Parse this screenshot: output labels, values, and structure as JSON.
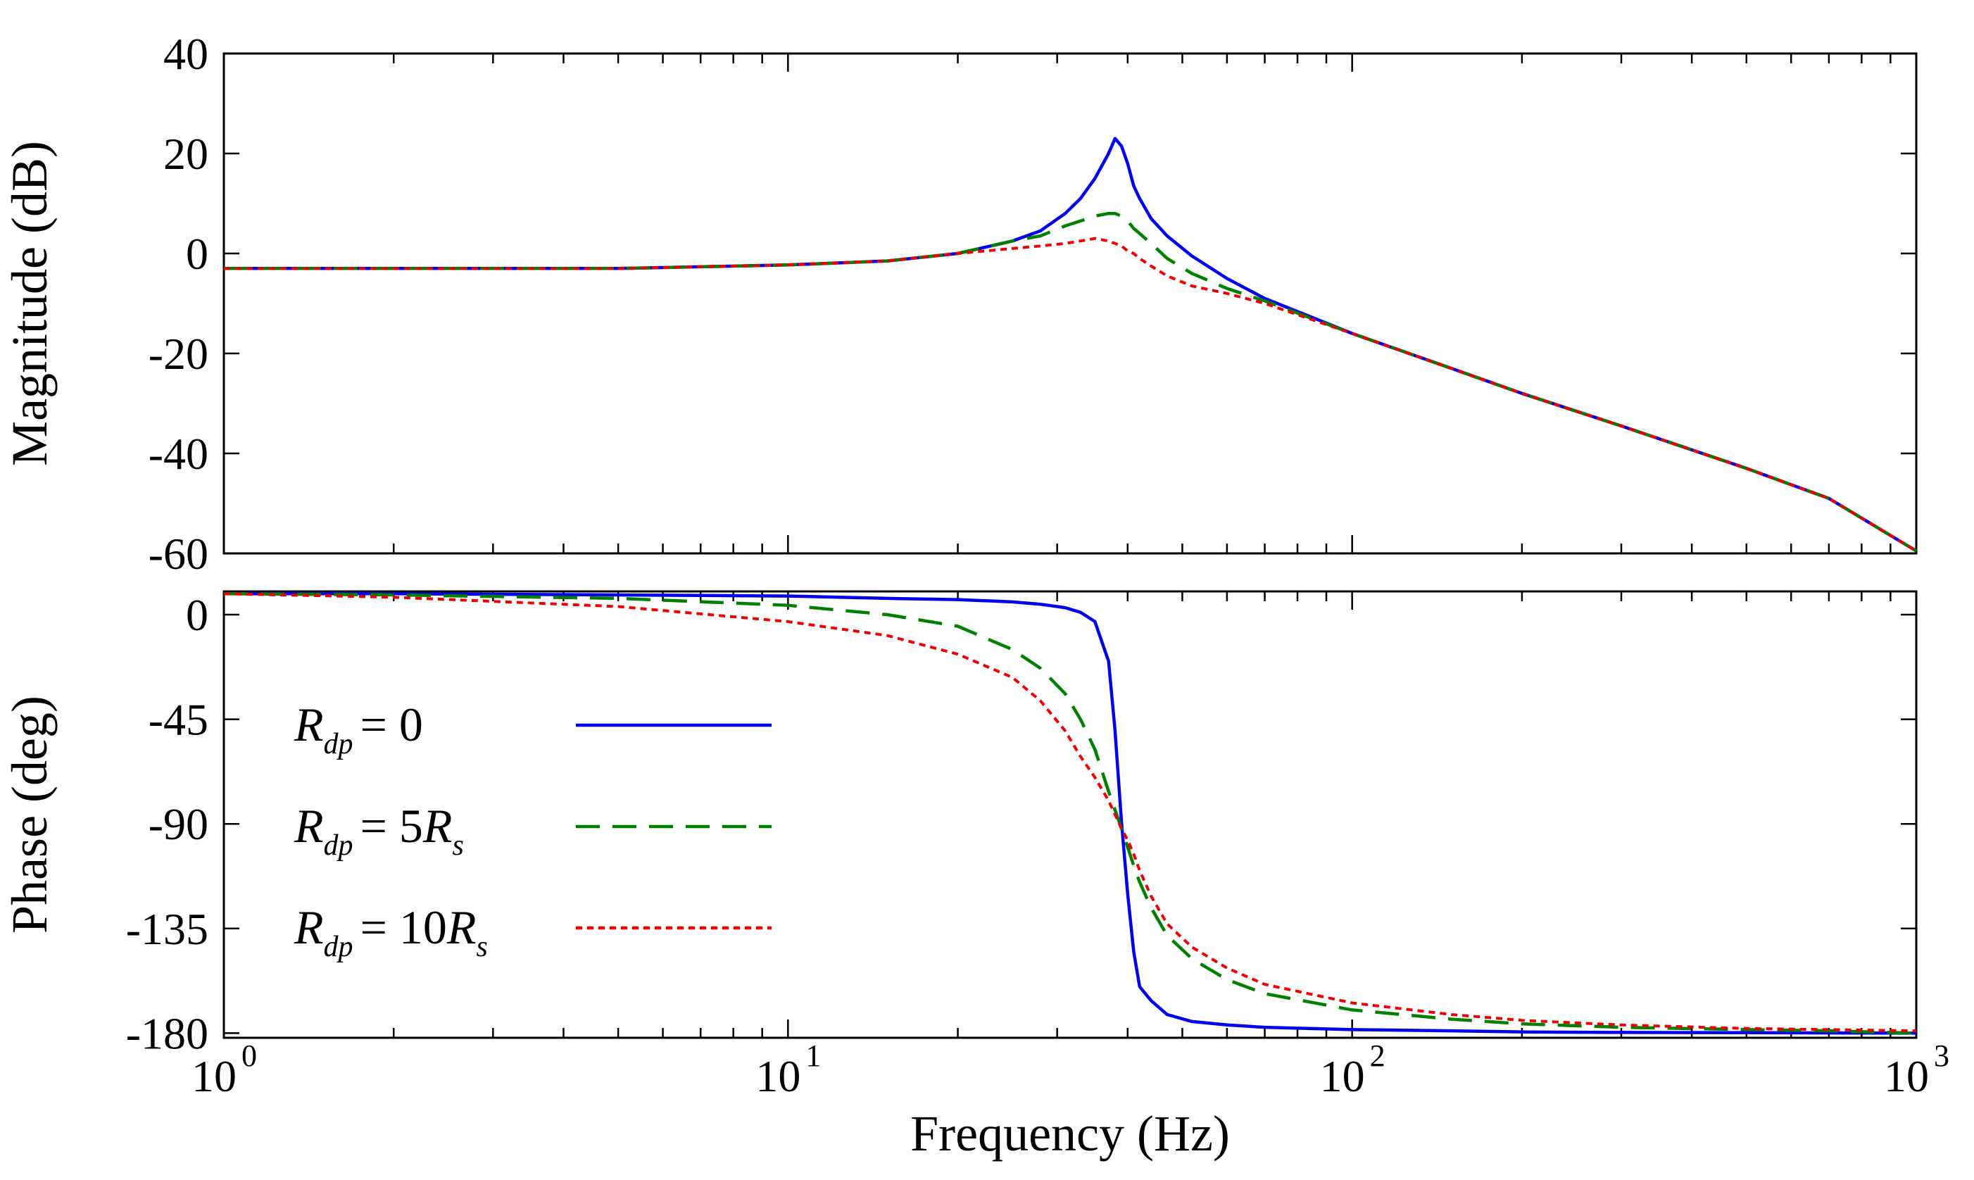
{
  "chart_data": {
    "type": "line",
    "title": "",
    "xlabel": "Frequency  (Hz)",
    "xscale": "log",
    "xlim": [
      1,
      1000
    ],
    "x_ticks": [
      {
        "base": "10",
        "exp": "0",
        "value": 1
      },
      {
        "base": "10",
        "exp": "1",
        "value": 10
      },
      {
        "base": "10",
        "exp": "2",
        "value": 100
      },
      {
        "base": "10",
        "exp": "3",
        "value": 1000
      }
    ],
    "x": [
      1,
      2,
      5,
      10,
      15,
      20,
      25,
      28,
      31,
      33,
      35,
      37,
      38,
      39,
      40,
      41,
      42,
      44,
      47,
      52,
      60,
      70,
      100,
      150,
      200,
      300,
      500,
      700,
      1000
    ],
    "series": [
      {
        "name": "R_dp = 0",
        "color": "#0000ee",
        "style": "solid",
        "label": {
          "main": "R",
          "sub": "dp",
          "eq": "= 0"
        },
        "magnitude": [
          -3,
          -3,
          -3,
          -2.3,
          -1.5,
          0,
          2.5,
          4.5,
          8,
          11,
          15,
          20,
          23,
          21.5,
          18,
          13.5,
          11,
          7,
          3.5,
          -0.5,
          -5,
          -9,
          -16,
          -23,
          -28,
          -34.5,
          -43,
          -49,
          -59.5
        ],
        "phase": [
          9,
          9,
          8.5,
          8,
          7,
          6.5,
          5.5,
          4.5,
          3,
          1,
          -3,
          -20,
          -50,
          -89,
          -120,
          -145,
          -160,
          -166,
          -172,
          -175,
          -176.5,
          -177.5,
          -178.5,
          -179,
          -179.5,
          -179.7,
          -179.8,
          -179.9,
          -180
        ]
      },
      {
        "name": "R_dp = 5R_s",
        "color": "#008000",
        "style": "dashed",
        "label": {
          "main": "R",
          "sub": "dp",
          "eq": "= 5",
          "tail": "R",
          "tail_sub": "s"
        },
        "magnitude": [
          -3,
          -3,
          -3,
          -2.3,
          -1.5,
          0,
          2.5,
          3.5,
          5.5,
          6.5,
          7.5,
          8,
          8,
          7.5,
          6.5,
          5,
          4,
          2,
          -1,
          -4,
          -7,
          -9.5,
          -16,
          -23,
          -28,
          -34.5,
          -43,
          -49,
          -59.5
        ],
        "phase": [
          9,
          8.5,
          7,
          4,
          0,
          -5,
          -15,
          -23,
          -34,
          -45,
          -58,
          -76,
          -84,
          -92,
          -100,
          -108,
          -115,
          -126,
          -138,
          -148,
          -157,
          -163,
          -170,
          -174,
          -176,
          -177.5,
          -178.5,
          -179,
          -180
        ]
      },
      {
        "name": "R_dp = 10R_s",
        "color": "#ee0000",
        "style": "dotted",
        "label": {
          "main": "R",
          "sub": "dp",
          "eq": "= 10",
          "tail": "R",
          "tail_sub": "s"
        },
        "magnitude": [
          -3,
          -3,
          -3,
          -2.3,
          -1.5,
          0,
          1,
          1.5,
          2,
          2.5,
          3,
          2.5,
          2,
          1.5,
          0.5,
          0,
          -1,
          -2.5,
          -4.5,
          -6.5,
          -8,
          -10,
          -16,
          -23,
          -28,
          -34.5,
          -43,
          -49,
          -59.5
        ],
        "phase": [
          9,
          7.5,
          3.5,
          -3,
          -9,
          -17,
          -27,
          -37,
          -50,
          -61,
          -70,
          -80,
          -86,
          -92,
          -97,
          -103,
          -110,
          -121,
          -133,
          -143,
          -152,
          -159,
          -167,
          -172,
          -174.5,
          -176.5,
          -178,
          -178.5,
          -179
        ]
      }
    ],
    "panels": [
      {
        "name": "magnitude",
        "ylabel": "Magnitude (dB)",
        "ylim": [
          -60,
          40
        ],
        "yticks": [
          "40",
          "20",
          "0",
          "-20",
          "-40",
          "-60"
        ],
        "ytick_values": [
          40,
          20,
          0,
          -20,
          -40,
          -60
        ]
      },
      {
        "name": "phase",
        "ylabel": "Phase (deg)",
        "ylim": [
          -182,
          10
        ],
        "yticks": [
          "0",
          "-45",
          "-90",
          "-135",
          "-180"
        ],
        "ytick_values": [
          0,
          -45,
          -90,
          -135,
          -180
        ]
      }
    ],
    "legend_position": "phase panel, center-left",
    "grid": false
  }
}
